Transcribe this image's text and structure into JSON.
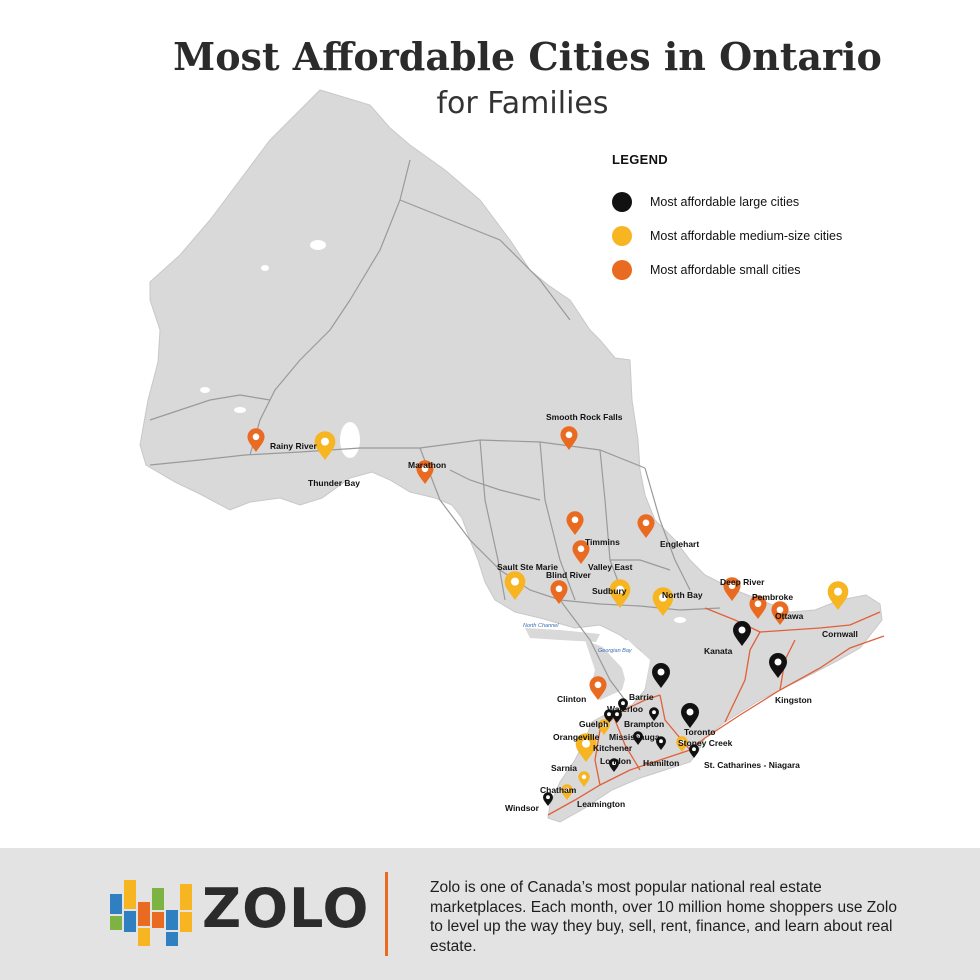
{
  "header": {
    "title": "Most Affordable Cities in Ontario",
    "subtitle": "for Families"
  },
  "legend": {
    "title": "LEGEND",
    "items": [
      {
        "label": "Most affordable large cities",
        "color": "#111111"
      },
      {
        "label": "Most affordable medium-size cities",
        "color": "#f7b522"
      },
      {
        "label": "Most affordable small cities",
        "color": "#e96b22"
      }
    ]
  },
  "map": {
    "land_color": "#d9d9d9",
    "road_color": "#9a9a9a",
    "highway_color": "#e0603a",
    "water_labels": [
      "North Channel",
      "Georgian Bay"
    ],
    "cities": [
      {
        "name": "Rainy River",
        "size": "small"
      },
      {
        "name": "Thunder Bay",
        "size": "medium"
      },
      {
        "name": "Marathon",
        "size": "small"
      },
      {
        "name": "Smooth Rock Falls",
        "size": "small"
      },
      {
        "name": "Timmins",
        "size": "small"
      },
      {
        "name": "Englehart",
        "size": "small"
      },
      {
        "name": "Valley East",
        "size": "small"
      },
      {
        "name": "Sault Ste Marie",
        "size": "medium"
      },
      {
        "name": "Blind River",
        "size": "small"
      },
      {
        "name": "Sudbury",
        "size": "medium"
      },
      {
        "name": "North Bay",
        "size": "medium"
      },
      {
        "name": "Deep River",
        "size": "small"
      },
      {
        "name": "Pembroke",
        "size": "small"
      },
      {
        "name": "Ottawa",
        "size": "small"
      },
      {
        "name": "Cornwall",
        "size": "medium"
      },
      {
        "name": "Kanata",
        "size": "large"
      },
      {
        "name": "Kingston",
        "size": "large"
      },
      {
        "name": "Clinton",
        "size": "small"
      },
      {
        "name": "Barrie",
        "size": "large"
      },
      {
        "name": "Waterloo",
        "size": "large"
      },
      {
        "name": "Guelph",
        "size": "large"
      },
      {
        "name": "Brampton",
        "size": "large"
      },
      {
        "name": "Orangeville",
        "size": "medium"
      },
      {
        "name": "Mississauga",
        "size": "large"
      },
      {
        "name": "Toronto",
        "size": "large"
      },
      {
        "name": "Stoney Creek",
        "size": "medium"
      },
      {
        "name": "Kitchener",
        "size": "large"
      },
      {
        "name": "Hamilton",
        "size": "large"
      },
      {
        "name": "St. Catharines - Niagara",
        "size": "large"
      },
      {
        "name": "Sarnia",
        "size": "medium"
      },
      {
        "name": "London",
        "size": "large"
      },
      {
        "name": "Chatham",
        "size": "medium"
      },
      {
        "name": "Leamington",
        "size": "medium"
      },
      {
        "name": "Windsor",
        "size": "large"
      }
    ]
  },
  "footer": {
    "logo_text": "ZOLO",
    "logo_colors": [
      "#2f7fc1",
      "#f7b522",
      "#e96b22",
      "#7cb342",
      "#2f7fc1",
      "#f7b522",
      "#e96b22"
    ],
    "divider_color": "#e96b22",
    "description": "Zolo is one of Canada’s most popular national real estate marketplaces. Each month, over 10 million home shoppers use Zolo to level up the way they buy, sell, rent, finance, and learn about real estate."
  }
}
